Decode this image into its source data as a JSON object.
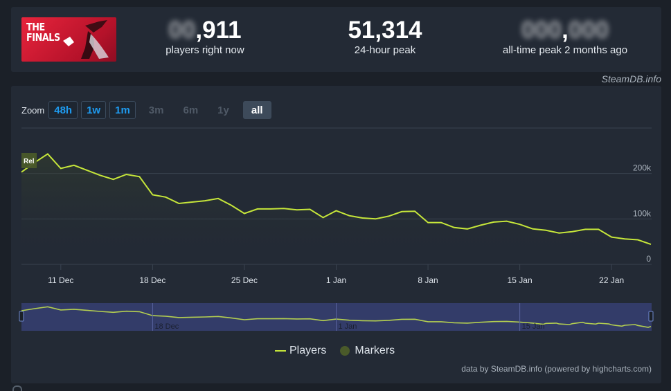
{
  "header": {
    "logo_text": "THE\nFINALS",
    "current": {
      "value": ",911",
      "label": "players right now"
    },
    "peak24": {
      "value": "51,314",
      "label": "24-hour peak"
    },
    "alltime": {
      "value": ",",
      "label": "all-time peak 2 months ago"
    }
  },
  "watermark": "SteamDB.info",
  "zoom": {
    "label": "Zoom",
    "buttons": [
      {
        "label": "48h",
        "state": "on"
      },
      {
        "label": "1w",
        "state": "on"
      },
      {
        "label": "1m",
        "state": "on"
      },
      {
        "label": "3m",
        "state": "off"
      },
      {
        "label": "6m",
        "state": "off"
      },
      {
        "label": "1y",
        "state": "off"
      },
      {
        "label": "all",
        "state": "selected"
      }
    ]
  },
  "legend": {
    "players": "Players",
    "markers": "Markers"
  },
  "credit": "data by SteamDB.info (powered by highcharts.com)",
  "colors": {
    "line": "#c6e63a",
    "marker": "#4a5a2a",
    "navigator_bg": "#3a4480"
  },
  "chart_data": {
    "type": "line",
    "series": [
      {
        "name": "Players"
      }
    ],
    "x_ticks": [
      "11 Dec",
      "18 Dec",
      "25 Dec",
      "1 Jan",
      "8 Jan",
      "15 Jan",
      "22 Jan"
    ],
    "y_ticks": [
      "0",
      "100k",
      "200k"
    ],
    "ylim": [
      0,
      300000
    ],
    "marker_label": "Rel",
    "x_start": "2023-12-08",
    "x_end": "2024-01-25",
    "points": [
      [
        "2023-12-08T00",
        203000
      ],
      [
        "2023-12-09T00",
        224000
      ],
      [
        "2023-12-10T00",
        243000
      ],
      [
        "2023-12-11T00",
        211000
      ],
      [
        "2023-12-12T00",
        218000
      ],
      [
        "2023-12-13T00",
        207000
      ],
      [
        "2023-12-14T00",
        196000
      ],
      [
        "2023-12-15T00",
        187000
      ],
      [
        "2023-12-16T00",
        198000
      ],
      [
        "2023-12-17T00",
        193000
      ],
      [
        "2023-12-18T00",
        153000
      ],
      [
        "2023-12-19T00",
        148000
      ],
      [
        "2023-12-20T00",
        134000
      ],
      [
        "2023-12-21T00",
        137000
      ],
      [
        "2023-12-22T00",
        140000
      ],
      [
        "2023-12-23T00",
        145000
      ],
      [
        "2023-12-24T00",
        130000
      ],
      [
        "2023-12-25T00",
        112000
      ],
      [
        "2023-12-26T00",
        122000
      ],
      [
        "2023-12-27T00",
        122000
      ],
      [
        "2023-12-28T00",
        123000
      ],
      [
        "2023-12-29T00",
        120000
      ],
      [
        "2023-12-30T00",
        121000
      ],
      [
        "2023-12-31T00",
        103000
      ],
      [
        "2024-01-01T00",
        118000
      ],
      [
        "2024-01-02T00",
        107000
      ],
      [
        "2024-01-03T00",
        102000
      ],
      [
        "2024-01-04T00",
        100000
      ],
      [
        "2024-01-05T00",
        106000
      ],
      [
        "2024-01-06T00",
        116000
      ],
      [
        "2024-01-07T00",
        117000
      ],
      [
        "2024-01-08T00",
        92000
      ],
      [
        "2024-01-09T00",
        92000
      ],
      [
        "2024-01-10T00",
        81000
      ],
      [
        "2024-01-11T00",
        78000
      ],
      [
        "2024-01-12T00",
        86000
      ],
      [
        "2024-01-13T00",
        93000
      ],
      [
        "2024-01-14T00",
        95000
      ],
      [
        "2024-01-15T00",
        88000
      ],
      [
        "2024-01-16T00",
        78000
      ],
      [
        "2024-01-17T00",
        75000
      ],
      [
        "2024-01-18T00",
        69000
      ],
      [
        "2024-01-19T00",
        72000
      ],
      [
        "2024-01-20T00",
        77000
      ],
      [
        "2024-01-21T00",
        77000
      ],
      [
        "2024-01-22T00",
        60000
      ],
      [
        "2024-01-23T00",
        56000
      ],
      [
        "2024-01-24T00",
        54000
      ],
      [
        "2024-01-25T00",
        44000
      ]
    ]
  }
}
